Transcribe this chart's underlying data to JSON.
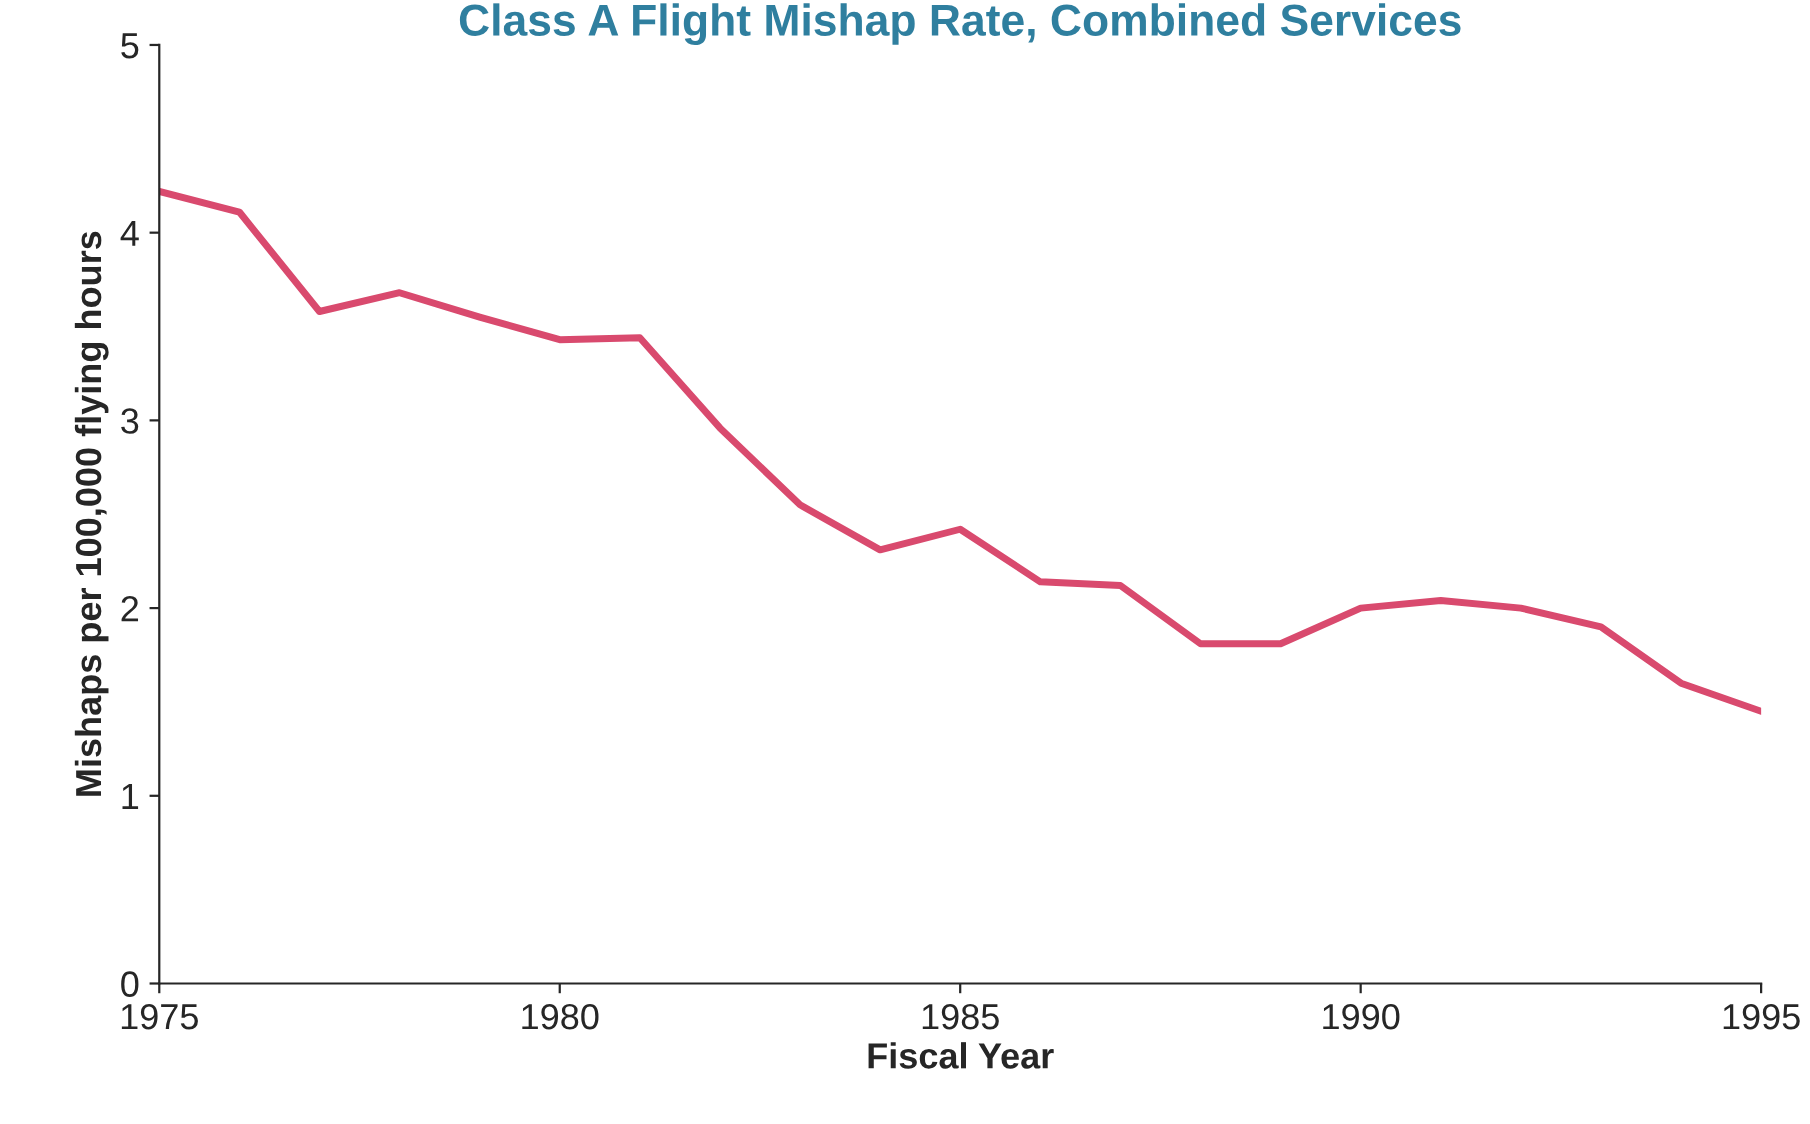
{
  "chart_data": {
    "type": "line",
    "title": "Class A Flight Mishap Rate, Combined Services",
    "xlabel": "Fiscal Year",
    "ylabel": "Mishaps per 100,000 flying hours",
    "x": [
      1975,
      1976,
      1977,
      1978,
      1979,
      1980,
      1981,
      1982,
      1983,
      1984,
      1985,
      1986,
      1987,
      1988,
      1989,
      1990,
      1991,
      1992,
      1993,
      1994,
      1995
    ],
    "series": [
      {
        "color": "#d94a6e",
        "values": [
          4.22,
          4.11,
          3.58,
          3.68,
          3.55,
          3.43,
          3.44,
          2.96,
          2.55,
          2.31,
          2.42,
          2.14,
          2.12,
          1.81,
          1.81,
          2.0,
          2.04,
          2.0,
          1.9,
          1.6,
          1.45
        ]
      }
    ],
    "xlim": [
      1975,
      1995
    ],
    "xticks": [
      1975,
      1980,
      1985,
      1990,
      1995
    ],
    "ylim": [
      0,
      5
    ],
    "yticks": [
      0,
      1,
      2,
      3,
      4,
      5
    ],
    "grid": false,
    "legend": false,
    "marker": "none",
    "line_style": "solid"
  }
}
